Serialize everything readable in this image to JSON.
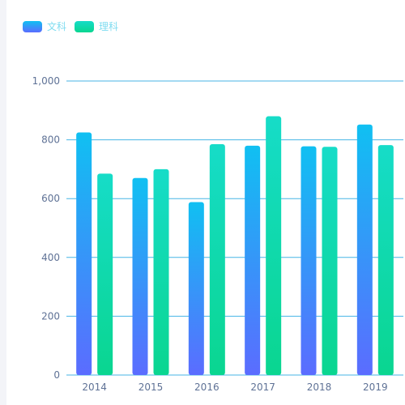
{
  "legend": {
    "arts_label": "文科",
    "science_label": "理科"
  },
  "colors": {
    "arts_top": "#10c0f2",
    "arts_bottom": "#5b6cff",
    "science_top": "#16dcc8",
    "science_bottom": "#0ad690",
    "grid": "#47b6e6",
    "axis_text": "#5f7296"
  },
  "chart_data": {
    "type": "bar",
    "categories": [
      "2014",
      "2015",
      "2016",
      "2017",
      "2018",
      "2019"
    ],
    "series": [
      {
        "name": "文科",
        "values": [
          825,
          670,
          588,
          780,
          778,
          852
        ]
      },
      {
        "name": "理科",
        "values": [
          685,
          700,
          785,
          880,
          776,
          782
        ]
      }
    ],
    "ylim": [
      0,
      1000
    ],
    "yticks": [
      "0",
      "200",
      "400",
      "600",
      "800",
      "1,000"
    ],
    "grid": true,
    "legend_position": "top-left"
  }
}
